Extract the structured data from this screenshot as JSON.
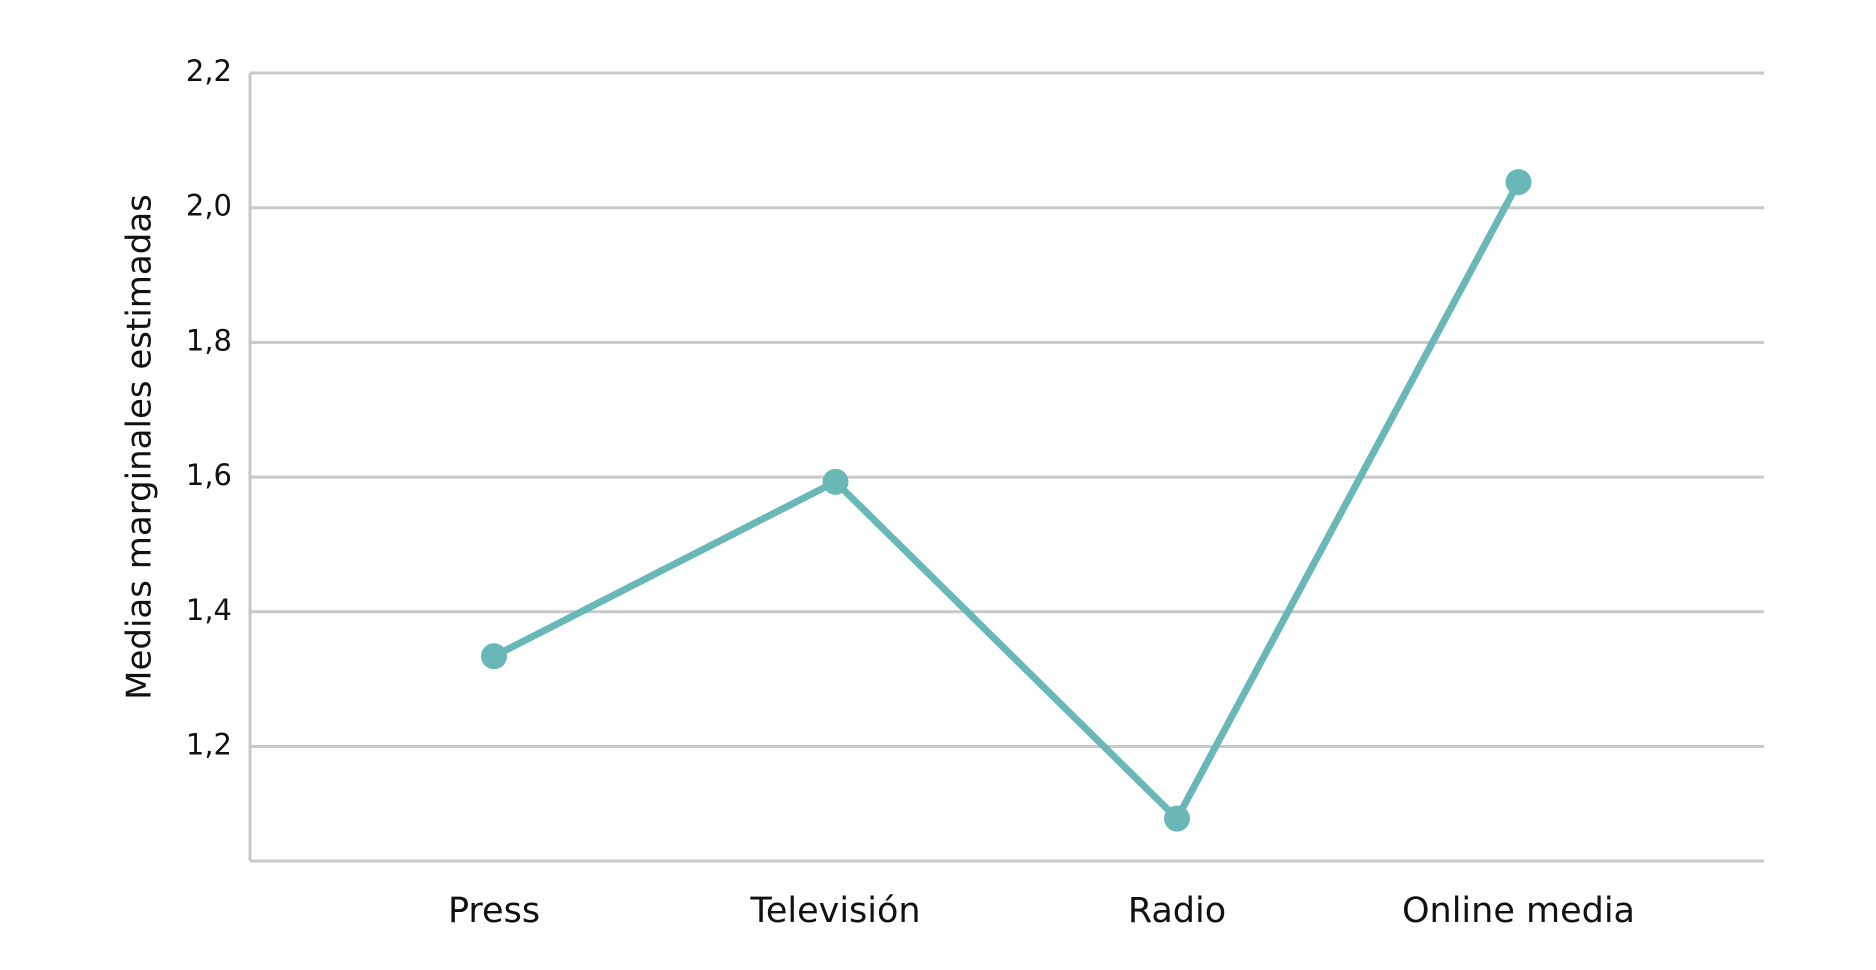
{
  "chart_data": {
    "type": "line",
    "y_label": "Medias marginales estimadas",
    "categories": [
      "Press",
      "Televisión",
      "Radio",
      "Online media"
    ],
    "values": [
      1.334,
      1.593,
      1.093,
      2.038
    ],
    "color": "#6ab7b8",
    "ylim": [
      1.03,
      2.2
    ],
    "yticks": [
      {
        "value": 1.2,
        "label": "1,2"
      },
      {
        "value": 1.4,
        "label": "1,4"
      },
      {
        "value": 1.6,
        "label": "1,6"
      },
      {
        "value": 1.8,
        "label": "1,8"
      },
      {
        "value": 2.0,
        "label": "2,0"
      },
      {
        "value": 2.2,
        "label": "2,2"
      }
    ],
    "grid": true
  }
}
